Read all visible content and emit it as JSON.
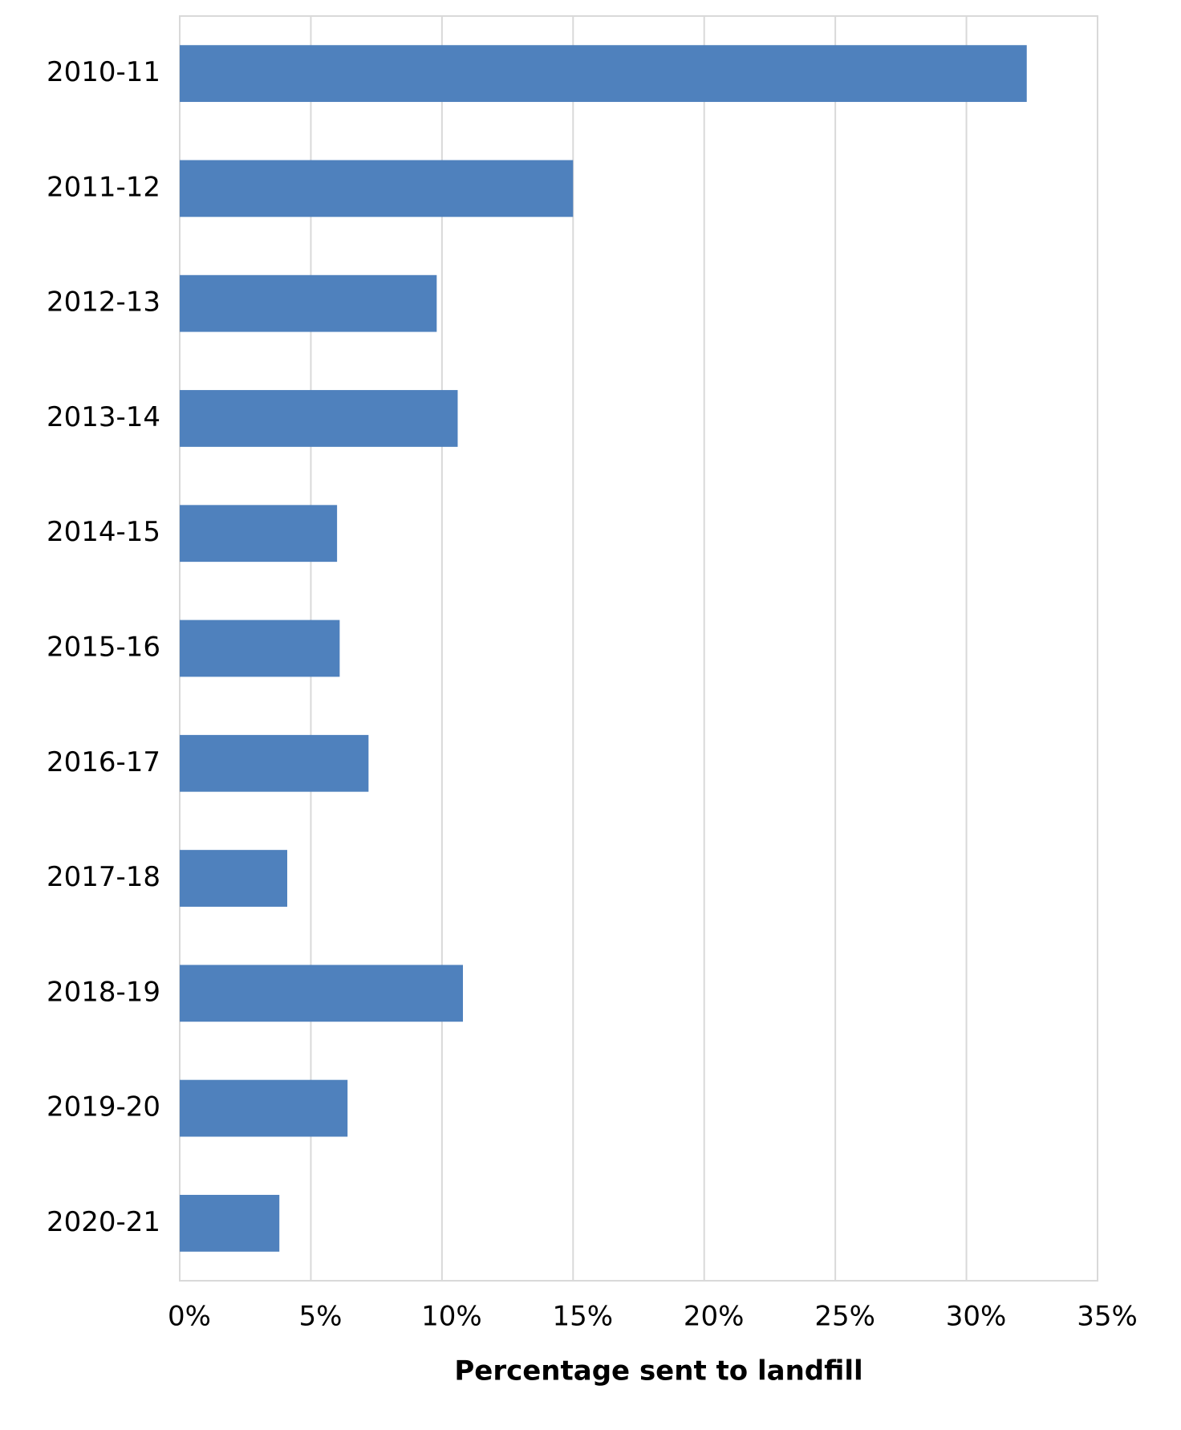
{
  "chart_data": {
    "type": "bar",
    "orientation": "horizontal",
    "x_label": "Percentage sent to landfill",
    "categories": [
      "2010-11",
      "2011-12",
      "2012-13",
      "2013-14",
      "2014-15",
      "2015-16",
      "2016-17",
      "2017-18",
      "2018-19",
      "2019-20",
      "2020-21"
    ],
    "values": [
      32.3,
      15.0,
      9.8,
      10.6,
      6.0,
      6.1,
      7.2,
      4.1,
      10.8,
      6.4,
      3.8
    ],
    "color": "#4f81bd",
    "xlim": [
      0,
      35
    ],
    "xticks": [
      {
        "value": 0,
        "label": "0%"
      },
      {
        "value": 5,
        "label": "5%"
      },
      {
        "value": 10,
        "label": "10%"
      },
      {
        "value": 15,
        "label": "15%"
      },
      {
        "value": 20,
        "label": "20%"
      },
      {
        "value": 25,
        "label": "25%"
      },
      {
        "value": 30,
        "label": "30%"
      },
      {
        "value": 35,
        "label": "35%"
      }
    ],
    "grid": true
  }
}
